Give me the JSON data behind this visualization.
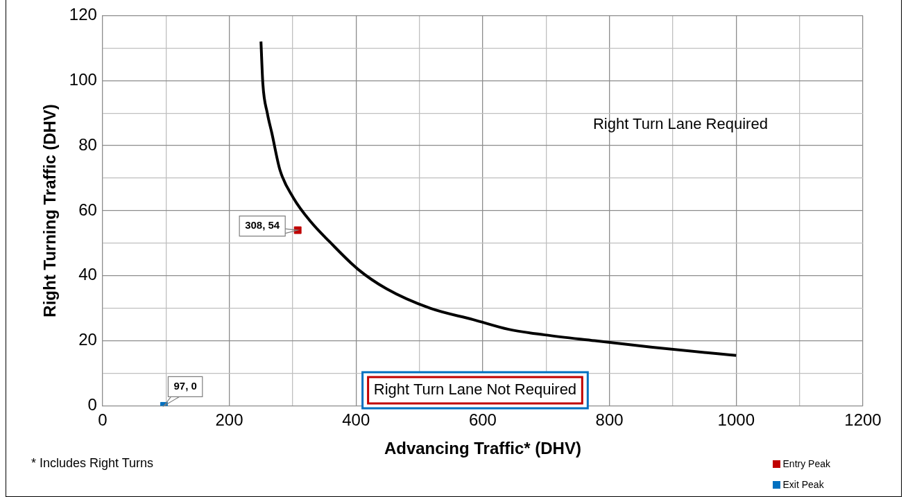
{
  "chart_data": {
    "type": "line",
    "xlabel": "Advancing Traffic* (DHV)",
    "ylabel": "Right Turning Traffic (DHV)",
    "xlim": [
      0,
      1200
    ],
    "ylim": [
      0,
      120
    ],
    "xticks": [
      0,
      {
        "value": 100,
        "label": null
      },
      200,
      {
        "value": 300,
        "label": null
      },
      400,
      {
        "value": 500,
        "label": null
      },
      600,
      {
        "value": 700,
        "label": null
      },
      800,
      {
        "value": 900,
        "label": null
      },
      1000,
      {
        "value": 1100,
        "label": null
      },
      1200
    ],
    "yticks": [
      0,
      {
        "value": 10,
        "label": null
      },
      20,
      {
        "value": 30,
        "label": null
      },
      40,
      {
        "value": 50,
        "label": null
      },
      60,
      {
        "value": 70,
        "label": null
      },
      80,
      {
        "value": 90,
        "label": null
      },
      100,
      {
        "value": 110,
        "label": null
      },
      120
    ],
    "grid": true,
    "legend": "bottom right",
    "marker": "none",
    "line_style": "solid",
    "series": [
      {
        "color": "#000000",
        "x": [
          250,
          253,
          260,
          267,
          280,
          301,
          329,
          358,
          403,
          448,
          517,
          585,
          641,
          698,
          777,
          868,
          971,
          1000
        ],
        "values": [
          112,
          99,
          90,
          84,
          72.5,
          64,
          56.5,
          50.5,
          42,
          36,
          30,
          26.5,
          23.5,
          21.8,
          20,
          18,
          16,
          15.5
        ]
      },
      {
        "type": "scatter",
        "name": "Entry Peak",
        "color": "#c00000",
        "marker": "square",
        "x": [
          308
        ],
        "values": [
          54
        ],
        "value_labels": [
          "308, 54"
        ]
      },
      {
        "type": "scatter",
        "name": "Exit Peak",
        "color": "#0070c0",
        "marker": "square",
        "x": [
          97
        ],
        "values": [
          0
        ],
        "value_labels": [
          "97, 0"
        ]
      }
    ],
    "annotations": [
      "Right Turn Lane Required",
      "Right Turn Lane Not Required",
      "* Includes Right Turns"
    ]
  }
}
